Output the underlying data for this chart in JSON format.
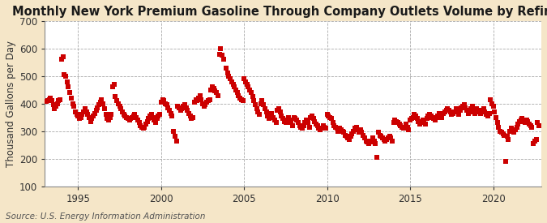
{
  "title": "Monthly New York Premium Gasoline Through Company Outlets Volume by Refiners",
  "ylabel": "Thousand Gallons per Day",
  "source": "Source: U.S. Energy Information Administration",
  "background_color": "#f5e6c8",
  "plot_bg_color": "#ffffff",
  "marker_color": "#cc0000",
  "marker": "s",
  "marker_size": 4.0,
  "xlim": [
    1993.0,
    2022.9
  ],
  "ylim": [
    100,
    700
  ],
  "yticks": [
    100,
    200,
    300,
    400,
    500,
    600,
    700
  ],
  "xticks": [
    1995,
    2000,
    2005,
    2010,
    2015,
    2020
  ],
  "grid_color": "#aaaaaa",
  "title_fontsize": 10.5,
  "axis_fontsize": 8.5,
  "tick_fontsize": 8.5,
  "source_fontsize": 7.5,
  "raw_data": [
    [
      1993.083,
      408
    ],
    [
      1993.167,
      410
    ],
    [
      1993.25,
      415
    ],
    [
      1993.333,
      420
    ],
    [
      1993.417,
      412
    ],
    [
      1993.5,
      395
    ],
    [
      1993.583,
      380
    ],
    [
      1993.667,
      390
    ],
    [
      1993.75,
      400
    ],
    [
      1993.833,
      410
    ],
    [
      1993.917,
      415
    ],
    [
      1994.0,
      560
    ],
    [
      1994.083,
      570
    ],
    [
      1994.167,
      505
    ],
    [
      1994.25,
      500
    ],
    [
      1994.333,
      480
    ],
    [
      1994.417,
      460
    ],
    [
      1994.5,
      440
    ],
    [
      1994.583,
      420
    ],
    [
      1994.667,
      400
    ],
    [
      1994.75,
      390
    ],
    [
      1994.833,
      370
    ],
    [
      1994.917,
      360
    ],
    [
      1995.0,
      355
    ],
    [
      1995.083,
      345
    ],
    [
      1995.167,
      350
    ],
    [
      1995.25,
      360
    ],
    [
      1995.333,
      370
    ],
    [
      1995.417,
      380
    ],
    [
      1995.5,
      370
    ],
    [
      1995.583,
      360
    ],
    [
      1995.667,
      350
    ],
    [
      1995.75,
      335
    ],
    [
      1995.833,
      345
    ],
    [
      1995.917,
      355
    ],
    [
      1996.0,
      365
    ],
    [
      1996.083,
      375
    ],
    [
      1996.167,
      385
    ],
    [
      1996.25,
      395
    ],
    [
      1996.333,
      405
    ],
    [
      1996.417,
      415
    ],
    [
      1996.5,
      400
    ],
    [
      1996.583,
      380
    ],
    [
      1996.667,
      360
    ],
    [
      1996.75,
      345
    ],
    [
      1996.833,
      340
    ],
    [
      1996.917,
      350
    ],
    [
      1997.0,
      360
    ],
    [
      1997.083,
      460
    ],
    [
      1997.167,
      470
    ],
    [
      1997.25,
      425
    ],
    [
      1997.333,
      410
    ],
    [
      1997.417,
      400
    ],
    [
      1997.5,
      390
    ],
    [
      1997.583,
      380
    ],
    [
      1997.667,
      370
    ],
    [
      1997.75,
      360
    ],
    [
      1997.833,
      355
    ],
    [
      1997.917,
      350
    ],
    [
      1998.0,
      345
    ],
    [
      1998.083,
      340
    ],
    [
      1998.167,
      345
    ],
    [
      1998.25,
      350
    ],
    [
      1998.333,
      355
    ],
    [
      1998.417,
      360
    ],
    [
      1998.5,
      350
    ],
    [
      1998.583,
      340
    ],
    [
      1998.667,
      330
    ],
    [
      1998.75,
      320
    ],
    [
      1998.833,
      315
    ],
    [
      1998.917,
      310
    ],
    [
      1999.0,
      315
    ],
    [
      1999.083,
      325
    ],
    [
      1999.167,
      335
    ],
    [
      1999.25,
      345
    ],
    [
      1999.333,
      355
    ],
    [
      1999.417,
      360
    ],
    [
      1999.5,
      350
    ],
    [
      1999.583,
      340
    ],
    [
      1999.667,
      330
    ],
    [
      1999.75,
      345
    ],
    [
      1999.833,
      355
    ],
    [
      1999.917,
      360
    ],
    [
      2000.0,
      405
    ],
    [
      2000.083,
      415
    ],
    [
      2000.167,
      410
    ],
    [
      2000.25,
      400
    ],
    [
      2000.333,
      395
    ],
    [
      2000.417,
      385
    ],
    [
      2000.5,
      375
    ],
    [
      2000.583,
      365
    ],
    [
      2000.667,
      355
    ],
    [
      2000.75,
      300
    ],
    [
      2000.833,
      280
    ],
    [
      2000.917,
      265
    ],
    [
      2001.0,
      390
    ],
    [
      2001.083,
      385
    ],
    [
      2001.167,
      375
    ],
    [
      2001.25,
      380
    ],
    [
      2001.333,
      390
    ],
    [
      2001.417,
      395
    ],
    [
      2001.5,
      385
    ],
    [
      2001.583,
      375
    ],
    [
      2001.667,
      365
    ],
    [
      2001.75,
      355
    ],
    [
      2001.833,
      345
    ],
    [
      2001.917,
      350
    ],
    [
      2002.0,
      405
    ],
    [
      2002.083,
      415
    ],
    [
      2002.167,
      410
    ],
    [
      2002.25,
      420
    ],
    [
      2002.333,
      430
    ],
    [
      2002.417,
      415
    ],
    [
      2002.5,
      400
    ],
    [
      2002.583,
      390
    ],
    [
      2002.667,
      395
    ],
    [
      2002.75,
      405
    ],
    [
      2002.833,
      410
    ],
    [
      2002.917,
      415
    ],
    [
      2003.0,
      450
    ],
    [
      2003.083,
      460
    ],
    [
      2003.167,
      455
    ],
    [
      2003.25,
      445
    ],
    [
      2003.333,
      440
    ],
    [
      2003.417,
      430
    ],
    [
      2003.5,
      580
    ],
    [
      2003.583,
      600
    ],
    [
      2003.667,
      575
    ],
    [
      2003.75,
      560
    ],
    [
      2003.917,
      530
    ],
    [
      2004.0,
      510
    ],
    [
      2004.083,
      500
    ],
    [
      2004.167,
      490
    ],
    [
      2004.25,
      480
    ],
    [
      2004.333,
      470
    ],
    [
      2004.417,
      460
    ],
    [
      2004.5,
      450
    ],
    [
      2004.583,
      440
    ],
    [
      2004.667,
      430
    ],
    [
      2004.75,
      420
    ],
    [
      2004.833,
      415
    ],
    [
      2004.917,
      410
    ],
    [
      2005.0,
      490
    ],
    [
      2005.083,
      480
    ],
    [
      2005.167,
      470
    ],
    [
      2005.25,
      460
    ],
    [
      2005.333,
      450
    ],
    [
      2005.417,
      440
    ],
    [
      2005.5,
      425
    ],
    [
      2005.583,
      410
    ],
    [
      2005.667,
      395
    ],
    [
      2005.75,
      380
    ],
    [
      2005.833,
      370
    ],
    [
      2005.917,
      360
    ],
    [
      2006.0,
      400
    ],
    [
      2006.083,
      410
    ],
    [
      2006.167,
      395
    ],
    [
      2006.25,
      380
    ],
    [
      2006.333,
      370
    ],
    [
      2006.417,
      355
    ],
    [
      2006.5,
      345
    ],
    [
      2006.583,
      355
    ],
    [
      2006.667,
      365
    ],
    [
      2006.75,
      350
    ],
    [
      2006.833,
      340
    ],
    [
      2006.917,
      330
    ],
    [
      2007.0,
      375
    ],
    [
      2007.083,
      380
    ],
    [
      2007.167,
      370
    ],
    [
      2007.25,
      355
    ],
    [
      2007.333,
      345
    ],
    [
      2007.417,
      335
    ],
    [
      2007.5,
      330
    ],
    [
      2007.583,
      340
    ],
    [
      2007.667,
      350
    ],
    [
      2007.75,
      340
    ],
    [
      2007.833,
      330
    ],
    [
      2007.917,
      320
    ],
    [
      2008.0,
      350
    ],
    [
      2008.083,
      345
    ],
    [
      2008.167,
      340
    ],
    [
      2008.25,
      330
    ],
    [
      2008.333,
      320
    ],
    [
      2008.417,
      315
    ],
    [
      2008.5,
      310
    ],
    [
      2008.583,
      320
    ],
    [
      2008.667,
      330
    ],
    [
      2008.75,
      340
    ],
    [
      2008.833,
      330
    ],
    [
      2008.917,
      315
    ],
    [
      2009.0,
      350
    ],
    [
      2009.083,
      355
    ],
    [
      2009.167,
      345
    ],
    [
      2009.25,
      335
    ],
    [
      2009.333,
      325
    ],
    [
      2009.417,
      320
    ],
    [
      2009.5,
      310
    ],
    [
      2009.583,
      305
    ],
    [
      2009.667,
      310
    ],
    [
      2009.75,
      320
    ],
    [
      2009.833,
      315
    ],
    [
      2009.917,
      310
    ],
    [
      2010.0,
      360
    ],
    [
      2010.083,
      355
    ],
    [
      2010.167,
      350
    ],
    [
      2010.25,
      345
    ],
    [
      2010.333,
      330
    ],
    [
      2010.417,
      320
    ],
    [
      2010.5,
      315
    ],
    [
      2010.583,
      310
    ],
    [
      2010.667,
      300
    ],
    [
      2010.75,
      310
    ],
    [
      2010.833,
      305
    ],
    [
      2010.917,
      300
    ],
    [
      2011.0,
      295
    ],
    [
      2011.083,
      285
    ],
    [
      2011.167,
      280
    ],
    [
      2011.25,
      275
    ],
    [
      2011.333,
      270
    ],
    [
      2011.417,
      280
    ],
    [
      2011.5,
      290
    ],
    [
      2011.583,
      300
    ],
    [
      2011.667,
      310
    ],
    [
      2011.75,
      315
    ],
    [
      2011.833,
      305
    ],
    [
      2011.917,
      295
    ],
    [
      2012.0,
      305
    ],
    [
      2012.083,
      295
    ],
    [
      2012.167,
      285
    ],
    [
      2012.25,
      275
    ],
    [
      2012.333,
      265
    ],
    [
      2012.417,
      260
    ],
    [
      2012.5,
      255
    ],
    [
      2012.583,
      260
    ],
    [
      2012.667,
      265
    ],
    [
      2012.75,
      275
    ],
    [
      2012.833,
      265
    ],
    [
      2012.917,
      255
    ],
    [
      2013.0,
      205
    ],
    [
      2013.083,
      295
    ],
    [
      2013.167,
      285
    ],
    [
      2013.25,
      280
    ],
    [
      2013.333,
      275
    ],
    [
      2013.417,
      270
    ],
    [
      2013.5,
      265
    ],
    [
      2013.583,
      270
    ],
    [
      2013.667,
      275
    ],
    [
      2013.75,
      280
    ],
    [
      2013.833,
      275
    ],
    [
      2013.917,
      265
    ],
    [
      2014.0,
      330
    ],
    [
      2014.083,
      340
    ],
    [
      2014.167,
      335
    ],
    [
      2014.25,
      330
    ],
    [
      2014.333,
      325
    ],
    [
      2014.417,
      320
    ],
    [
      2014.5,
      315
    ],
    [
      2014.583,
      310
    ],
    [
      2014.667,
      315
    ],
    [
      2014.75,
      325
    ],
    [
      2014.833,
      315
    ],
    [
      2014.917,
      305
    ],
    [
      2015.0,
      340
    ],
    [
      2015.083,
      345
    ],
    [
      2015.167,
      350
    ],
    [
      2015.25,
      360
    ],
    [
      2015.333,
      355
    ],
    [
      2015.417,
      345
    ],
    [
      2015.5,
      335
    ],
    [
      2015.583,
      325
    ],
    [
      2015.667,
      330
    ],
    [
      2015.75,
      340
    ],
    [
      2015.833,
      335
    ],
    [
      2015.917,
      325
    ],
    [
      2016.0,
      345
    ],
    [
      2016.083,
      355
    ],
    [
      2016.167,
      360
    ],
    [
      2016.25,
      355
    ],
    [
      2016.333,
      350
    ],
    [
      2016.417,
      345
    ],
    [
      2016.5,
      340
    ],
    [
      2016.583,
      350
    ],
    [
      2016.667,
      355
    ],
    [
      2016.75,
      365
    ],
    [
      2016.833,
      360
    ],
    [
      2016.917,
      350
    ],
    [
      2017.0,
      365
    ],
    [
      2017.083,
      370
    ],
    [
      2017.167,
      375
    ],
    [
      2017.25,
      380
    ],
    [
      2017.333,
      375
    ],
    [
      2017.417,
      370
    ],
    [
      2017.5,
      360
    ],
    [
      2017.583,
      365
    ],
    [
      2017.667,
      370
    ],
    [
      2017.75,
      380
    ],
    [
      2017.833,
      370
    ],
    [
      2017.917,
      360
    ],
    [
      2018.0,
      375
    ],
    [
      2018.083,
      385
    ],
    [
      2018.167,
      390
    ],
    [
      2018.25,
      395
    ],
    [
      2018.333,
      385
    ],
    [
      2018.417,
      375
    ],
    [
      2018.5,
      365
    ],
    [
      2018.583,
      370
    ],
    [
      2018.667,
      380
    ],
    [
      2018.75,
      390
    ],
    [
      2018.833,
      380
    ],
    [
      2018.917,
      365
    ],
    [
      2019.0,
      380
    ],
    [
      2019.083,
      375
    ],
    [
      2019.167,
      370
    ],
    [
      2019.25,
      365
    ],
    [
      2019.333,
      375
    ],
    [
      2019.417,
      380
    ],
    [
      2019.5,
      370
    ],
    [
      2019.583,
      360
    ],
    [
      2019.667,
      355
    ],
    [
      2019.75,
      365
    ],
    [
      2019.833,
      415
    ],
    [
      2019.917,
      400
    ],
    [
      2020.0,
      390
    ],
    [
      2020.083,
      370
    ],
    [
      2020.167,
      350
    ],
    [
      2020.25,
      330
    ],
    [
      2020.333,
      315
    ],
    [
      2020.417,
      300
    ],
    [
      2020.5,
      295
    ],
    [
      2020.583,
      290
    ],
    [
      2020.667,
      285
    ],
    [
      2020.75,
      190
    ],
    [
      2020.833,
      280
    ],
    [
      2020.917,
      270
    ],
    [
      2021.0,
      300
    ],
    [
      2021.083,
      310
    ],
    [
      2021.167,
      305
    ],
    [
      2021.25,
      295
    ],
    [
      2021.333,
      305
    ],
    [
      2021.417,
      315
    ],
    [
      2021.5,
      325
    ],
    [
      2021.583,
      335
    ],
    [
      2021.667,
      340
    ],
    [
      2021.75,
      345
    ],
    [
      2021.833,
      335
    ],
    [
      2021.917,
      330
    ],
    [
      2022.0,
      340
    ],
    [
      2022.083,
      335
    ],
    [
      2022.167,
      325
    ],
    [
      2022.25,
      320
    ],
    [
      2022.333,
      315
    ],
    [
      2022.417,
      255
    ],
    [
      2022.5,
      265
    ],
    [
      2022.583,
      270
    ],
    [
      2022.667,
      330
    ],
    [
      2022.75,
      320
    ]
  ]
}
